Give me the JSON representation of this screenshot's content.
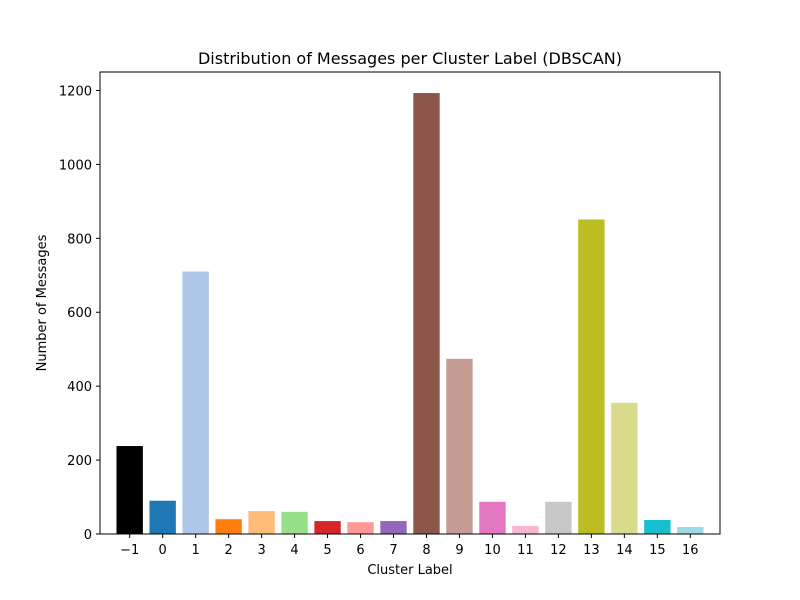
{
  "chart_data": {
    "type": "bar",
    "title": "Distribution of Messages per Cluster Label (DBSCAN)",
    "xlabel": "Cluster Label",
    "ylabel": "Number of Messages",
    "categories": [
      "−1",
      "0",
      "1",
      "2",
      "3",
      "4",
      "5",
      "6",
      "7",
      "8",
      "9",
      "10",
      "11",
      "12",
      "13",
      "14",
      "15",
      "16"
    ],
    "values": [
      238,
      90,
      710,
      40,
      62,
      60,
      35,
      32,
      35,
      1193,
      474,
      87,
      22,
      87,
      851,
      355,
      38,
      19
    ],
    "colors": [
      "#000000",
      "#1f77b4",
      "#aec7e8",
      "#ff7f0e",
      "#ffbb78",
      "#98df8a",
      "#d62728",
      "#ff9896",
      "#9467bd",
      "#8c564b",
      "#c49c94",
      "#e377c2",
      "#f7b6d2",
      "#c7c7c7",
      "#bcbd22",
      "#dbdb8d",
      "#17becf",
      "#9edae5"
    ],
    "ylim": [
      0,
      1250
    ],
    "yticks": [
      0,
      200,
      400,
      600,
      800,
      1000,
      1200
    ],
    "grid": false,
    "legend": "none"
  }
}
